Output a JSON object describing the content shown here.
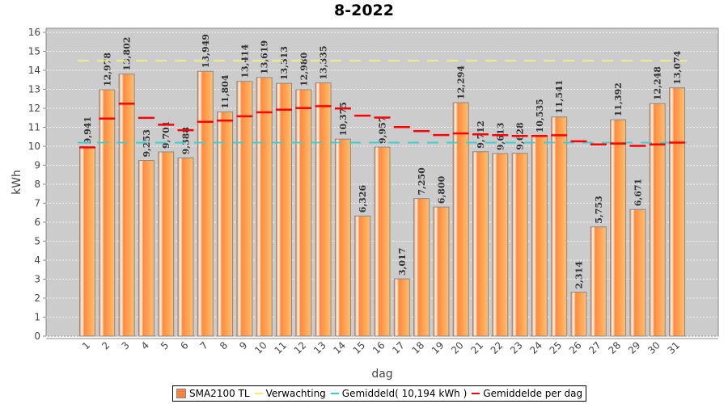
{
  "chart_data": {
    "type": "bar",
    "title": "8-2022",
    "xlabel": "dag",
    "ylabel": "kWh",
    "ylim": [
      0,
      16
    ],
    "yticks": [
      0,
      1,
      2,
      3,
      4,
      5,
      6,
      7,
      8,
      9,
      10,
      11,
      12,
      13,
      14,
      15,
      16
    ],
    "categories": [
      "1",
      "2",
      "3",
      "4",
      "5",
      "6",
      "7",
      "8",
      "9",
      "10",
      "11",
      "12",
      "13",
      "14",
      "15",
      "16",
      "17",
      "18",
      "19",
      "20",
      "21",
      "22",
      "23",
      "24",
      "25",
      "26",
      "27",
      "28",
      "29",
      "30",
      "31"
    ],
    "series": [
      {
        "name": "SMA2100 TL",
        "values": [
          9.941,
          12.978,
          13.802,
          9.253,
          9.701,
          9.388,
          13.949,
          11.804,
          13.414,
          13.619,
          13.313,
          12.98,
          13.335,
          10.375,
          6.326,
          9.957,
          3.017,
          7.25,
          6.8,
          12.294,
          9.712,
          9.613,
          9.628,
          10.535,
          11.541,
          2.314,
          5.753,
          11.392,
          6.671,
          12.248,
          13.074
        ]
      }
    ],
    "data_labels": [
      "9,941",
      "12,978",
      "13,802",
      "9,253",
      "9,701",
      "9,388",
      "13,949",
      "11,804",
      "13,414",
      "13,619",
      "13,313",
      "12,980",
      "13,335",
      "10,375",
      "6,326",
      "9,957",
      "3,017",
      "7,250",
      "6,800",
      "12,294",
      "9,712",
      "9,613",
      "9,628",
      "10,535",
      "11,541",
      "2,314",
      "5,753",
      "11,392",
      "6,671",
      "12,248",
      "13,074"
    ],
    "expectation": 14.5,
    "average": 10.194,
    "legend": [
      {
        "label": "SMA2100 TL",
        "color": "#f58442"
      },
      {
        "label": "Verwachting",
        "color": "#eeee99"
      },
      {
        "label": "Gemiddeld( 10,194 kWh )",
        "color": "#44cccc"
      },
      {
        "label": "Gemiddelde per dag",
        "color": "#ff0000"
      }
    ],
    "legend_position": "bottom",
    "grid": true
  }
}
